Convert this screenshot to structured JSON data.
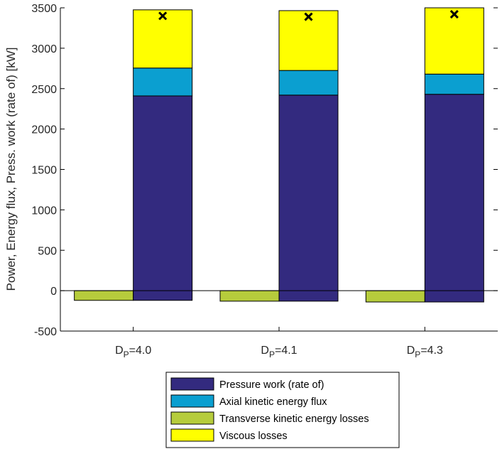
{
  "chart_data": {
    "type": "bar",
    "stacked": true,
    "ylabel": "Power, Energy flux, Press. work (rate of) [kW]",
    "xlabel": "",
    "ylim": [
      -500,
      3500
    ],
    "yticks": [
      -500,
      0,
      500,
      1000,
      1500,
      2000,
      2500,
      3000,
      3500
    ],
    "grid": false,
    "legend_position": "bottom-center",
    "categories": [
      {
        "main": "D",
        "sub": "P",
        "suffix": "=4.0"
      },
      {
        "main": "D",
        "sub": "P",
        "suffix": "=4.1"
      },
      {
        "main": "D",
        "sub": "P",
        "suffix": "=4.3"
      }
    ],
    "series": [
      {
        "name": "Pressure work (rate of)",
        "color": "#332a7f",
        "values": [
          2410,
          2420,
          2430
        ],
        "bar": "right"
      },
      {
        "name": "Axial kinetic energy flux",
        "color": "#0b9fd0",
        "values": [
          345,
          305,
          250
        ],
        "bar": "right"
      },
      {
        "name": "Transverse kinetic energy losses",
        "color": "#b6cc3c",
        "values": [
          -120,
          -130,
          -140
        ],
        "bar": "left"
      },
      {
        "name": "Viscous losses",
        "color": "#ffff00",
        "values": [
          720,
          740,
          820
        ],
        "bar": "right"
      }
    ],
    "negative_offset": [
      -120,
      -130,
      -140
    ],
    "markers": {
      "symbol": "x",
      "values": [
        3400,
        3390,
        3420
      ]
    },
    "legend_order": [
      0,
      1,
      2,
      3
    ]
  }
}
